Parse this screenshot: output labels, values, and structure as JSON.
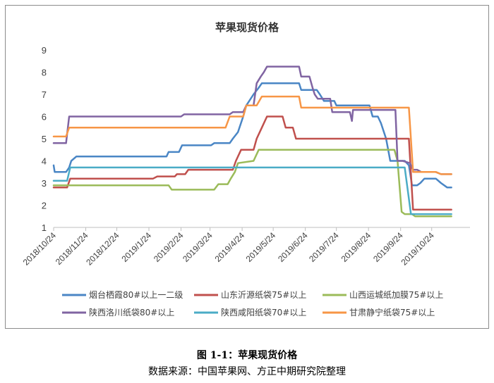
{
  "chart_data": {
    "type": "line",
    "title": "苹果现货价格",
    "ylim": [
      1,
      9
    ],
    "yticks": [
      "1",
      "2",
      "3",
      "4",
      "5",
      "6",
      "7",
      "8",
      "9"
    ],
    "xlim": [
      "2018-10-24",
      "2019-11-30"
    ],
    "xticks": [
      "2018/10/24",
      "2018/11/24",
      "2018/12/24",
      "2019/1/24",
      "2019/2/24",
      "2019/3/24",
      "2019/4/24",
      "2019/5/24",
      "2019/6/24",
      "2019/7/24",
      "2019/8/24",
      "2019/9/24",
      "2019/10/24"
    ],
    "legend_position": "bottom",
    "series": [
      {
        "name": "烟台栖霞80#以上一二级",
        "color": "#4a86c5",
        "points": [
          [
            "2018-10-24",
            3.8
          ],
          [
            "2018-10-25",
            3.5
          ],
          [
            "2018-11-05",
            3.5
          ],
          [
            "2018-11-08",
            3.7
          ],
          [
            "2018-11-10",
            4.0
          ],
          [
            "2018-11-15",
            4.2
          ],
          [
            "2019-02-10",
            4.2
          ],
          [
            "2019-02-12",
            4.4
          ],
          [
            "2019-02-22",
            4.4
          ],
          [
            "2019-02-25",
            4.7
          ],
          [
            "2019-03-25",
            4.7
          ],
          [
            "2019-03-28",
            4.8
          ],
          [
            "2019-04-12",
            4.8
          ],
          [
            "2019-04-15",
            5.0
          ],
          [
            "2019-04-20",
            5.3
          ],
          [
            "2019-04-25",
            6.0
          ],
          [
            "2019-04-28",
            6.5
          ],
          [
            "2019-05-05",
            7.0
          ],
          [
            "2019-05-10",
            7.3
          ],
          [
            "2019-05-13",
            7.5
          ],
          [
            "2019-06-18",
            7.5
          ],
          [
            "2019-06-20",
            7.2
          ],
          [
            "2019-07-05",
            7.2
          ],
          [
            "2019-07-08",
            7.0
          ],
          [
            "2019-07-12",
            6.7
          ],
          [
            "2019-07-22",
            6.7
          ],
          [
            "2019-07-24",
            6.5
          ],
          [
            "2019-08-25",
            6.5
          ],
          [
            "2019-08-28",
            6.0
          ],
          [
            "2019-09-02",
            6.0
          ],
          [
            "2019-09-05",
            5.7
          ],
          [
            "2019-09-10",
            5.0
          ],
          [
            "2019-09-14",
            4.0
          ],
          [
            "2019-09-28",
            4.0
          ],
          [
            "2019-10-02",
            3.8
          ],
          [
            "2019-10-05",
            2.9
          ],
          [
            "2019-10-10",
            2.9
          ],
          [
            "2019-10-13",
            3.0
          ],
          [
            "2019-10-17",
            3.2
          ],
          [
            "2019-10-28",
            3.2
          ],
          [
            "2019-11-02",
            3.0
          ],
          [
            "2019-11-08",
            2.8
          ],
          [
            "2019-11-12",
            2.8
          ]
        ]
      },
      {
        "name": "山东沂源纸袋75#以上",
        "color": "#c0504d",
        "points": [
          [
            "2018-10-24",
            2.8
          ],
          [
            "2018-11-06",
            2.8
          ],
          [
            "2018-11-09",
            3.2
          ],
          [
            "2019-01-28",
            3.2
          ],
          [
            "2019-02-01",
            3.3
          ],
          [
            "2019-02-18",
            3.3
          ],
          [
            "2019-02-20",
            3.4
          ],
          [
            "2019-02-28",
            3.4
          ],
          [
            "2019-03-03",
            3.6
          ],
          [
            "2019-04-15",
            3.6
          ],
          [
            "2019-04-18",
            4.0
          ],
          [
            "2019-04-23",
            4.5
          ],
          [
            "2019-05-05",
            4.5
          ],
          [
            "2019-05-08",
            5.0
          ],
          [
            "2019-05-13",
            5.5
          ],
          [
            "2019-05-18",
            6.0
          ],
          [
            "2019-06-02",
            6.0
          ],
          [
            "2019-06-05",
            5.5
          ],
          [
            "2019-06-12",
            5.5
          ],
          [
            "2019-06-15",
            5.0
          ],
          [
            "2019-10-02",
            5.0
          ],
          [
            "2019-10-06",
            1.8
          ],
          [
            "2019-11-12",
            1.8
          ]
        ]
      },
      {
        "name": "山西运城纸加膜75#以上",
        "color": "#9bbb59",
        "points": [
          [
            "2018-10-24",
            2.9
          ],
          [
            "2019-02-12",
            2.9
          ],
          [
            "2019-02-15",
            2.7
          ],
          [
            "2019-03-28",
            2.7
          ],
          [
            "2019-04-01",
            2.95
          ],
          [
            "2019-04-10",
            2.95
          ],
          [
            "2019-04-13",
            3.2
          ],
          [
            "2019-04-17",
            3.5
          ],
          [
            "2019-04-20",
            3.9
          ],
          [
            "2019-05-05",
            4.0
          ],
          [
            "2019-05-10",
            4.5
          ],
          [
            "2019-09-18",
            4.5
          ],
          [
            "2019-09-21",
            4.0
          ],
          [
            "2019-09-25",
            1.7
          ],
          [
            "2019-09-28",
            1.6
          ],
          [
            "2019-10-05",
            1.6
          ],
          [
            "2019-10-08",
            1.5
          ],
          [
            "2019-11-12",
            1.5
          ]
        ]
      },
      {
        "name": "陕西洛川纸袋80#以上",
        "color": "#8064a2",
        "points": [
          [
            "2018-10-24",
            4.8
          ],
          [
            "2018-11-05",
            4.8
          ],
          [
            "2018-11-08",
            6.0
          ],
          [
            "2019-02-24",
            6.0
          ],
          [
            "2019-02-27",
            6.1
          ],
          [
            "2019-04-12",
            6.1
          ],
          [
            "2019-04-15",
            6.2
          ],
          [
            "2019-04-25",
            6.2
          ],
          [
            "2019-04-28",
            6.5
          ],
          [
            "2019-05-05",
            6.5
          ],
          [
            "2019-05-08",
            7.5
          ],
          [
            "2019-05-12",
            7.8
          ],
          [
            "2019-05-15",
            8.0
          ],
          [
            "2019-05-18",
            8.25
          ],
          [
            "2019-06-18",
            8.25
          ],
          [
            "2019-06-20",
            7.8
          ],
          [
            "2019-06-28",
            7.8
          ],
          [
            "2019-07-01",
            7.3
          ],
          [
            "2019-07-03",
            7.0
          ],
          [
            "2019-07-06",
            6.8
          ],
          [
            "2019-07-18",
            6.8
          ],
          [
            "2019-07-20",
            6.2
          ],
          [
            "2019-08-06",
            6.2
          ],
          [
            "2019-08-08",
            5.8
          ],
          [
            "2019-08-09",
            6.3
          ],
          [
            "2019-09-19",
            6.3
          ],
          [
            "2019-09-21",
            4.0
          ],
          [
            "2019-09-26",
            4.0
          ],
          [
            "2019-10-03",
            3.9
          ],
          [
            "2019-10-06",
            3.6
          ],
          [
            "2019-10-10",
            3.6
          ],
          [
            "2019-10-14",
            3.5
          ],
          [
            "2019-10-24",
            3.5
          ],
          [
            "2019-10-28",
            3.5
          ],
          [
            "2019-11-02",
            3.4
          ],
          [
            "2019-11-12",
            3.4
          ]
        ]
      },
      {
        "name": "陕西咸阳纸袋70#以上",
        "color": "#4bacc6",
        "points": [
          [
            "2018-10-24",
            3.1
          ],
          [
            "2018-11-06",
            3.1
          ],
          [
            "2018-11-09",
            3.7
          ],
          [
            "2019-09-28",
            3.7
          ],
          [
            "2019-10-04",
            1.6
          ],
          [
            "2019-11-12",
            1.6
          ]
        ]
      },
      {
        "name": "甘肃静宁纸袋75#以上",
        "color": "#f79646",
        "points": [
          [
            "2018-10-24",
            5.1
          ],
          [
            "2018-11-05",
            5.1
          ],
          [
            "2018-11-08",
            5.5
          ],
          [
            "2019-04-08",
            5.5
          ],
          [
            "2019-04-12",
            6.0
          ],
          [
            "2019-04-25",
            6.0
          ],
          [
            "2019-04-28",
            6.5
          ],
          [
            "2019-05-08",
            6.5
          ],
          [
            "2019-05-13",
            6.9
          ],
          [
            "2019-06-18",
            6.9
          ],
          [
            "2019-06-20",
            6.4
          ],
          [
            "2019-10-02",
            6.4
          ],
          [
            "2019-10-06",
            3.5
          ],
          [
            "2019-10-28",
            3.5
          ],
          [
            "2019-11-02",
            3.4
          ],
          [
            "2019-11-12",
            3.4
          ]
        ]
      }
    ]
  },
  "caption": {
    "figure_title": "图 1-1：苹果现货价格",
    "source": "数据来源：中国苹果网、方正中期研究院整理"
  }
}
